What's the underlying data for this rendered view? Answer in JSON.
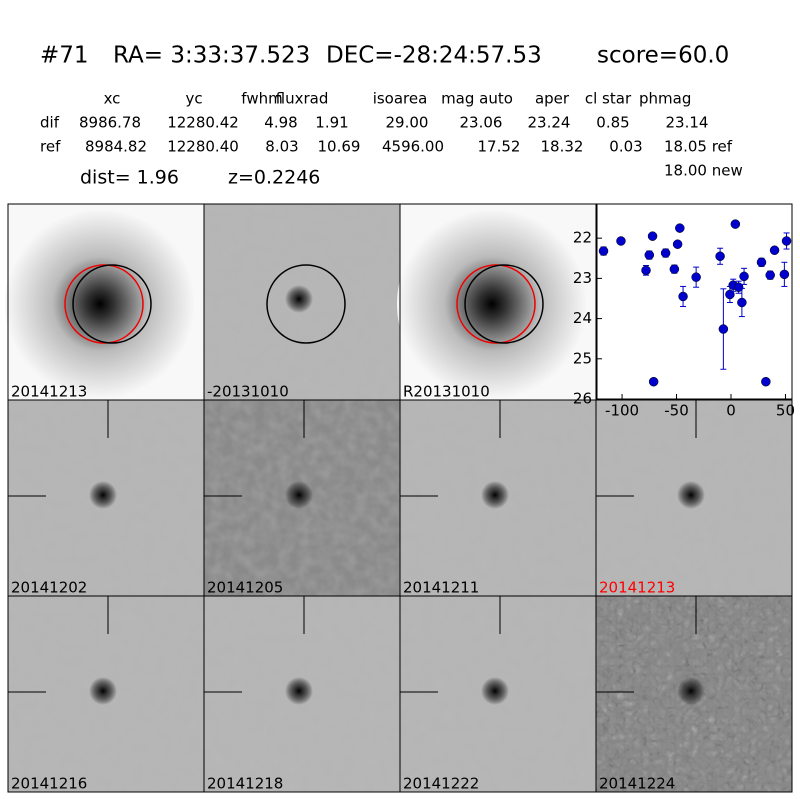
{
  "header": {
    "id": "#71",
    "ra": "RA= 3:33:37.523",
    "dec": "DEC=-28:24:57.53",
    "score": "score=60.0",
    "columns": [
      "xc",
      "yc",
      "fwhm",
      "fluxrad",
      "isoarea",
      "mag auto",
      "aper",
      "cl star",
      "phmag"
    ],
    "rows": [
      {
        "label": "dif",
        "cells": [
          "8986.78",
          "12280.42",
          "4.98",
          "1.91",
          "29.00",
          "23.06",
          "23.24",
          "0.85",
          "23.14"
        ]
      },
      {
        "label": "ref",
        "cells": [
          "8984.82",
          "12280.40",
          "8.03",
          "10.69",
          "4596.00",
          "17.52",
          "18.32",
          "0.03",
          "18.05 ref"
        ]
      }
    ],
    "extra": "18.00 new",
    "dist": "dist=  1.96",
    "z": "z=0.2246"
  },
  "stamps": [
    {
      "label": "20141213"
    },
    {
      "label": "-20131010"
    },
    {
      "label": "R20131010"
    },
    {
      "label": "20141202"
    },
    {
      "label": "20141205"
    },
    {
      "label": "20141211"
    },
    {
      "label": "20141213",
      "color": "#ff0000"
    },
    {
      "label": "20141216"
    },
    {
      "label": "20141218"
    },
    {
      "label": "20141222"
    },
    {
      "label": "20141224"
    }
  ],
  "chart_data": {
    "type": "scatter",
    "color": "#0000cc",
    "x": [
      -117,
      -101,
      -78,
      -75,
      -72,
      -71,
      -60,
      -52,
      -49,
      -47,
      -44,
      -32,
      -10,
      -7,
      -1,
      2,
      4,
      7,
      10,
      12,
      28,
      32,
      36,
      40,
      49,
      51
    ],
    "values": [
      22.32,
      22.07,
      22.8,
      22.42,
      21.95,
      25.57,
      22.37,
      22.77,
      22.15,
      21.75,
      23.45,
      22.97,
      22.45,
      24.26,
      23.4,
      23.17,
      21.65,
      23.22,
      23.6,
      22.95,
      22.6,
      25.57,
      22.92,
      22.3,
      22.9,
      22.07
    ],
    "errors": [
      0.1,
      0.05,
      0.12,
      0.1,
      0.06,
      0.08,
      0.1,
      0.1,
      0.08,
      0.06,
      0.25,
      0.25,
      0.2,
      1.0,
      0.2,
      0.15,
      0.05,
      0.15,
      0.35,
      0.2,
      0.1,
      0.08,
      0.1,
      0.08,
      0.3,
      0.2
    ],
    "xlim": [
      -123,
      56
    ],
    "ylim": [
      21.15,
      26
    ],
    "inverted_y": true,
    "xticks": [
      -100,
      -50,
      0,
      50
    ],
    "yticks": [
      22,
      23,
      24,
      25,
      26
    ]
  }
}
